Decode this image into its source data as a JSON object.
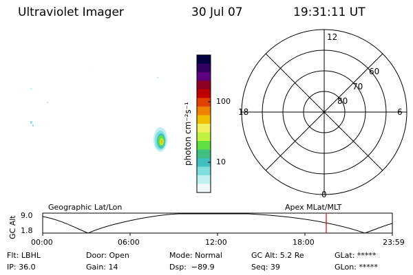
{
  "header": {
    "title": "Ultraviolet Imager",
    "date": "30 Jul 07",
    "time": "19:31:11 UT"
  },
  "colorbar": {
    "label": "photon cm⁻²s⁻¹",
    "ticks": [
      "100",
      "10"
    ],
    "colors": [
      "#000040",
      "#300060",
      "#600080",
      "#900020",
      "#c00000",
      "#e04000",
      "#f08000",
      "#f0c000",
      "#f0f060",
      "#c0f040",
      "#60e040",
      "#40c080",
      "#40c0c0",
      "#80e0e0",
      "#c0f0f0",
      "#f0f8f8"
    ]
  },
  "polar": {
    "mlt_labels": {
      "top": "12",
      "left": "18",
      "right": "6",
      "bottom": "0"
    },
    "lat_labels": [
      "60",
      "70",
      "80"
    ]
  },
  "strip": {
    "left_label": "Geographic Lat/Lon",
    "right_label": "Apex MLat/MLT",
    "y_axis_label": "GC Alt",
    "y_ticks": [
      "9.0",
      "1.8"
    ],
    "x_ticks": [
      "00:00",
      "06:00",
      "12:00",
      "18:00",
      "23:59"
    ],
    "marker_time": "19:31",
    "marker_color": "#e00000"
  },
  "footer": {
    "row1": [
      "Flt: LBHL",
      "Door: Open",
      "Mode: Normal",
      "GC Alt: 5.2 Re",
      "GLat: *****"
    ],
    "row2": [
      "IP: 36.0",
      "Gain: 14",
      "Dsp:  −89.9",
      "Seq: 39",
      "GLon: *****"
    ]
  }
}
